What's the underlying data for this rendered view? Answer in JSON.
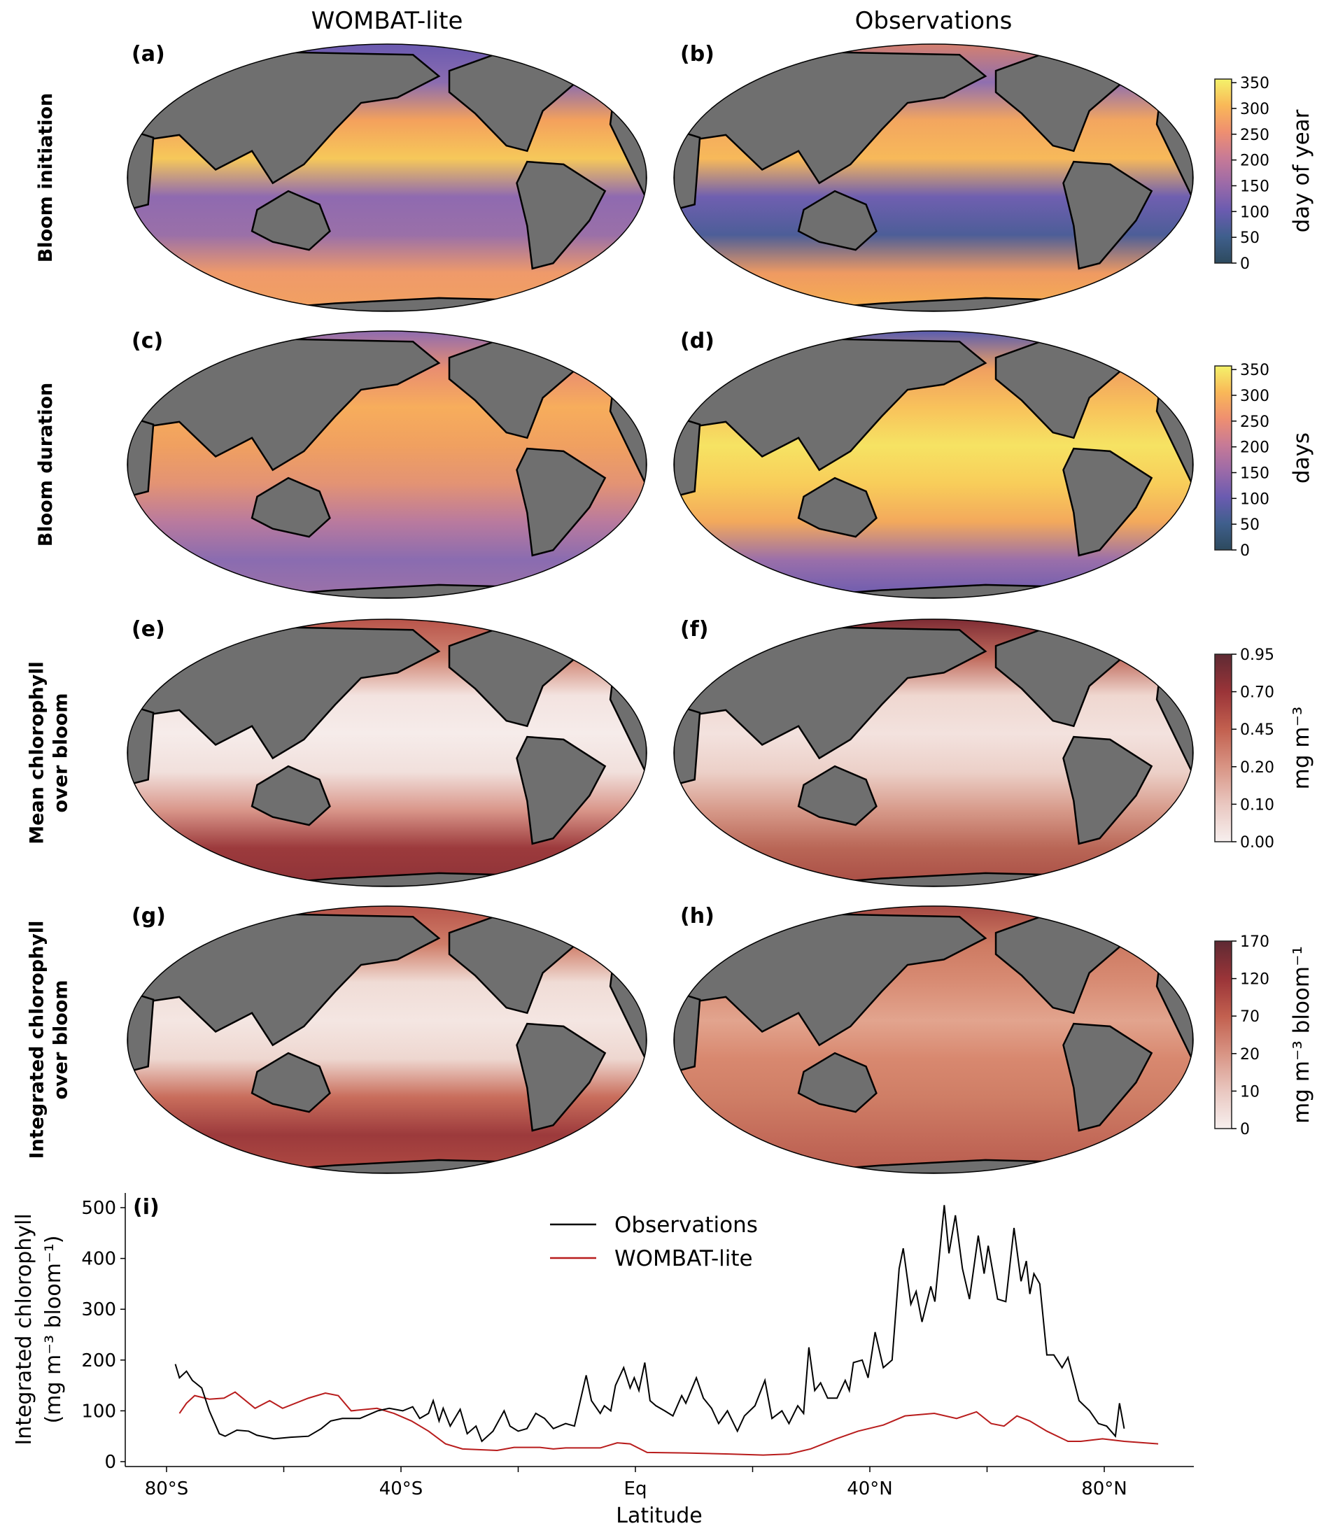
{
  "columns": [
    "WOMBAT-lite",
    "Observations"
  ],
  "rows": [
    {
      "title": "Bloom initiation",
      "colorbar": {
        "label": "day of year",
        "ticks": [
          "0",
          "50",
          "100",
          "150",
          "200",
          "250",
          "300",
          "350"
        ],
        "colors": [
          "#2d4a5e",
          "#3f5f8c",
          "#6a5bb0",
          "#9b6aa8",
          "#c77a96",
          "#ef8f70",
          "#f9b858",
          "#f4f26a"
        ]
      },
      "panels": [
        {
          "label": "(a)",
          "ocean_colors": [
            "#6a5ab0",
            "#8a6cb0",
            "#f4a15c",
            "#f6c85a",
            "#8f6ab0",
            "#9a70a8",
            "#ef9a6a",
            "#f2a160"
          ]
        },
        {
          "label": "(b)",
          "ocean_colors": [
            "#d4806f",
            "#8f6fb0",
            "#f3a65f",
            "#f7b95a",
            "#6f5fb0",
            "#4d5e98",
            "#ef9a62",
            "#f7b04f"
          ]
        }
      ]
    },
    {
      "title": "Bloom duration",
      "colorbar": {
        "label": "days",
        "ticks": [
          "0",
          "50",
          "100",
          "150",
          "200",
          "250",
          "300",
          "350"
        ],
        "colors": [
          "#2d4a5e",
          "#3f5f8c",
          "#6a5bb0",
          "#9b6aa8",
          "#c77a96",
          "#ef8f70",
          "#f9b858",
          "#f4f26a"
        ]
      },
      "panels": [
        {
          "label": "(c)",
          "ocean_colors": [
            "#8f6cb0",
            "#e98e70",
            "#f7ad5c",
            "#f0a060",
            "#e39374",
            "#b97a9e",
            "#8a6cb0",
            "#9d72a8"
          ]
        },
        {
          "label": "(d)",
          "ocean_colors": [
            "#5a5db0",
            "#f0a060",
            "#f8c25b",
            "#f6e363",
            "#f8cd5a",
            "#f3a95c",
            "#9a6faa",
            "#6a5bb0"
          ]
        }
      ]
    },
    {
      "title": "Mean chlorophyll\nover bloom",
      "colorbar": {
        "label": "mg m⁻³",
        "ticks": [
          "0.00",
          "0.10",
          "0.20",
          "0.45",
          "0.70",
          "0.95"
        ],
        "colors": [
          "#f7efee",
          "#e9c7c0",
          "#d89484",
          "#c2604f",
          "#9a3438",
          "#5e2a33"
        ]
      },
      "panels": [
        {
          "label": "(e)",
          "ocean_colors": [
            "#b8544a",
            "#d08472",
            "#f3e3e0",
            "#f6ecea",
            "#f1e0dc",
            "#d9968a",
            "#9c3a3c",
            "#8e3338"
          ]
        },
        {
          "label": "(f)",
          "ocean_colors": [
            "#7e2c34",
            "#c06a5c",
            "#efd7d0",
            "#f3e2de",
            "#ecd0c8",
            "#d79a8a",
            "#b96656",
            "#a84c44"
          ]
        }
      ]
    },
    {
      "title": "Integrated chlorophyll\nover bloom",
      "colorbar": {
        "label": "mg m⁻³ bloom⁻¹",
        "ticks": [
          "0",
          "10",
          "20",
          "70",
          "120",
          "170"
        ],
        "colors": [
          "#f7efee",
          "#e9c7c0",
          "#d89484",
          "#c2604f",
          "#9a3438",
          "#5e2a33"
        ]
      },
      "panels": [
        {
          "label": "(g)",
          "ocean_colors": [
            "#b8544a",
            "#cf7d68",
            "#f0dcd6",
            "#f4e6e2",
            "#eed7d0",
            "#c96e5c",
            "#9c3a3c",
            "#b04a42"
          ]
        },
        {
          "label": "(h)",
          "ocean_colors": [
            "#a84a44",
            "#cd7a62",
            "#d88c74",
            "#e2a48e",
            "#d8886f",
            "#cf7e66",
            "#c46c5a",
            "#b85c4e"
          ]
        }
      ]
    }
  ],
  "chart_data": {
    "type": "line",
    "panel_label": "(i)",
    "xlabel": "Latitude",
    "ylabel_line1": "Integrated chlorophyll",
    "ylabel_line2": "(mg m⁻³ bloom⁻¹)",
    "xlim": [
      -86,
      103
    ],
    "ylim": [
      -5,
      525
    ],
    "xticks": [
      {
        "value": -80,
        "label": "80°S"
      },
      {
        "value": -60,
        "label": ""
      },
      {
        "value": -40,
        "label": "40°S"
      },
      {
        "value": -20,
        "label": ""
      },
      {
        "value": 0,
        "label": "Eq"
      },
      {
        "value": 20,
        "label": ""
      },
      {
        "value": 40,
        "label": "40°N"
      },
      {
        "value": 60,
        "label": ""
      },
      {
        "value": 80,
        "label": "80°N"
      }
    ],
    "yticks": [
      0,
      100,
      200,
      300,
      400,
      500
    ],
    "legend_position": "top-center",
    "grid": false,
    "series": [
      {
        "name": "Observations",
        "color": "#000000",
        "x": [
          -78.5,
          -77.8,
          -76.6,
          -75.6,
          -74,
          -72.7,
          -71,
          -70,
          -68,
          -66,
          -64.6,
          -61.7,
          -58.8,
          -55.8,
          -53.6,
          -52,
          -50,
          -47,
          -44,
          -42,
          -39.7,
          -38,
          -36.8,
          -35.3,
          -34.5,
          -33.5,
          -32.8,
          -31.6,
          -29.9,
          -28.7,
          -27.2,
          -26.2,
          -24.3,
          -22.4,
          -21.4,
          -20,
          -18.5,
          -17,
          -15.5,
          -14,
          -11.9,
          -10.4,
          -8.4,
          -7.5,
          -6,
          -5.3,
          -4.2,
          -3.4,
          -2,
          -0.9,
          -0.2,
          0.6,
          1.6,
          2.5,
          3.5,
          5,
          6.4,
          7.9,
          8.6,
          10.4,
          11.6,
          13,
          14.2,
          15.7,
          17.4,
          18.6,
          20.4,
          22.1,
          23.3,
          25,
          26.2,
          27.7,
          28.7,
          29.6,
          30.6,
          31.6,
          32.8,
          34.4,
          35.8,
          36.5,
          37.2,
          38.7,
          39.7,
          40.9,
          42.3,
          43.8,
          45,
          45.7,
          47,
          47.9,
          48.9,
          50.4,
          51.1,
          52.7,
          53.5,
          54.6,
          55.8,
          57,
          58.5,
          59.5,
          60.2,
          61.8,
          63.2,
          64.6,
          65.8,
          66.7,
          67.3,
          68,
          69,
          70.2,
          71.4,
          72.8,
          73.8,
          75.7,
          77.5,
          79,
          80.4,
          81.9,
          82.6,
          83.4
        ],
        "y": [
          192,
          165,
          178,
          160,
          145,
          100,
          55,
          50,
          62,
          60,
          52,
          45,
          48,
          50,
          65,
          80,
          85,
          85,
          100,
          105,
          100,
          108,
          85,
          95,
          120,
          80,
          105,
          70,
          103,
          55,
          70,
          40,
          60,
          100,
          70,
          60,
          65,
          95,
          85,
          65,
          75,
          70,
          170,
          120,
          95,
          110,
          100,
          150,
          185,
          145,
          165,
          140,
          195,
          120,
          110,
          100,
          90,
          130,
          115,
          165,
          125,
          105,
          75,
          100,
          60,
          90,
          110,
          160,
          85,
          100,
          75,
          110,
          95,
          225,
          140,
          155,
          125,
          125,
          160,
          140,
          195,
          200,
          165,
          255,
          185,
          200,
          380,
          420,
          310,
          335,
          275,
          345,
          315,
          505,
          410,
          485,
          380,
          320,
          445,
          370,
          425,
          320,
          315,
          460,
          355,
          395,
          330,
          370,
          350,
          210,
          210,
          185,
          205,
          120,
          100,
          75,
          70,
          50,
          115,
          65
        ]
      },
      {
        "name": "WOMBAT-lite",
        "color": "#b81c1c",
        "x": [
          -77.8,
          -76.6,
          -75.2,
          -72.7,
          -70.2,
          -68.3,
          -64.9,
          -62.4,
          -60.2,
          -55.8,
          -52.9,
          -50.7,
          -48.5,
          -44.1,
          -41.2,
          -38.2,
          -35.3,
          -32.4,
          -29.5,
          -23.6,
          -20.7,
          -16.3,
          -14,
          -11.9,
          -6,
          -3.1,
          -0.9,
          2,
          8.6,
          16,
          21.8,
          26.2,
          29.9,
          34.3,
          38,
          42.3,
          46,
          51,
          54.8,
          58.2,
          60.7,
          62.9,
          65.1,
          67.3,
          70.2,
          73.8,
          76,
          79.7,
          83.4,
          89.2
        ],
        "y": [
          95,
          115,
          130,
          123,
          125,
          137,
          105,
          120,
          105,
          125,
          135,
          130,
          100,
          105,
          95,
          80,
          60,
          35,
          25,
          22,
          28,
          28,
          25,
          27,
          27,
          37,
          35,
          18,
          17,
          15,
          13,
          15,
          25,
          45,
          60,
          72,
          90,
          95,
          85,
          98,
          75,
          70,
          90,
          80,
          60,
          40,
          40,
          45,
          40,
          35
        ]
      }
    ]
  }
}
